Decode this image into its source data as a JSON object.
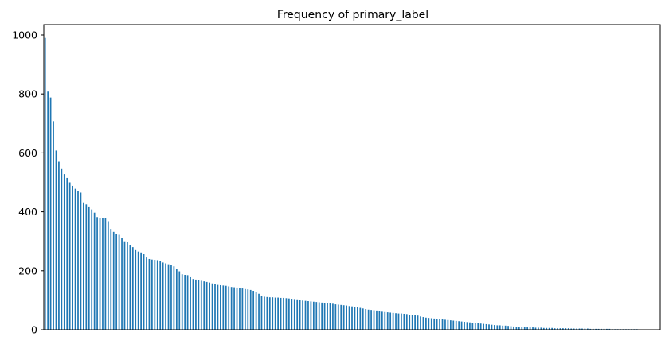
{
  "chart_data": {
    "type": "bar",
    "title": "Frequency of primary_label",
    "xlabel": "",
    "ylabel": "",
    "ylim": [
      0,
      1035
    ],
    "yticks": [
      0,
      200,
      400,
      600,
      800,
      1000
    ],
    "grid": false,
    "legend": "none",
    "bar_color": "#1f77b4",
    "x_tick_labels_visible": false,
    "values": [
      990,
      808,
      788,
      708,
      608,
      570,
      545,
      528,
      515,
      500,
      488,
      478,
      470,
      465,
      432,
      425,
      418,
      408,
      397,
      382,
      380,
      380,
      378,
      368,
      342,
      332,
      325,
      322,
      310,
      300,
      298,
      288,
      280,
      270,
      265,
      262,
      256,
      245,
      240,
      238,
      237,
      236,
      232,
      228,
      225,
      222,
      220,
      215,
      207,
      198,
      188,
      186,
      185,
      178,
      172,
      170,
      168,
      166,
      164,
      162,
      160,
      157,
      154,
      152,
      151,
      150,
      149,
      147,
      145,
      144,
      143,
      142,
      140,
      138,
      137,
      135,
      132,
      128,
      122,
      115,
      112,
      111,
      110,
      110,
      109,
      109,
      108,
      108,
      107,
      106,
      105,
      104,
      103,
      101,
      99,
      98,
      97,
      96,
      95,
      94,
      93,
      92,
      91,
      90,
      89,
      88,
      86,
      85,
      84,
      83,
      82,
      80,
      79,
      78,
      76,
      74,
      72,
      70,
      68,
      67,
      66,
      65,
      63,
      61,
      60,
      59,
      58,
      57,
      56,
      55,
      55,
      54,
      53,
      51,
      50,
      49,
      48,
      45,
      43,
      41,
      40,
      39,
      38,
      37,
      36,
      35,
      34,
      33,
      32,
      31,
      30,
      29,
      28,
      27,
      26,
      25,
      24,
      23,
      22,
      21,
      20,
      19,
      18,
      17,
      16,
      15,
      15,
      14,
      14,
      13,
      12,
      11,
      10,
      10,
      9,
      9,
      8,
      8,
      8,
      7,
      7,
      7,
      6,
      6,
      6,
      6,
      5,
      5,
      5,
      5,
      5,
      5,
      4,
      4,
      4,
      4,
      4,
      4,
      4,
      3,
      3,
      3,
      3,
      3,
      3,
      3,
      3,
      2,
      2,
      2,
      2,
      2,
      2,
      2,
      2,
      2,
      2,
      1,
      1,
      1,
      1,
      1,
      1,
      1,
      1
    ]
  }
}
